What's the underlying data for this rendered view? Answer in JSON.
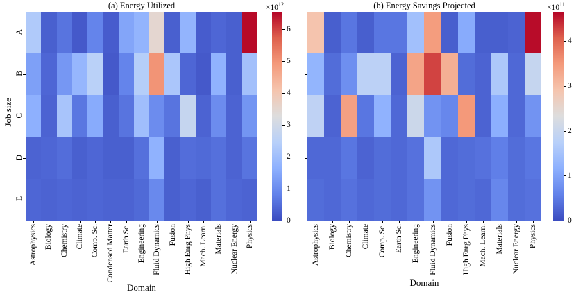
{
  "chart_data": [
    {
      "type": "heatmap",
      "title": "(a) Energy Utilized",
      "xlabel": "Domain",
      "ylabel": "Job size",
      "colormap": "coolwarm",
      "value_scale": "1e12",
      "x_categories": [
        "Astrophysics",
        "Biology",
        "Chemistry",
        "Climate",
        "Comp. Sc.",
        "Condensed Matter",
        "Earth Sc.",
        "Engineering",
        "Fluid Dynamics",
        "Fusion",
        "High Enrg Phys",
        "Mach. Learn.",
        "Materials",
        "Nuclear Energy",
        "Physics"
      ],
      "y_categories": [
        "A",
        "B",
        "C",
        "D",
        "E"
      ],
      "y_tick_labels_shown": true,
      "colorbar": {
        "prefix": "×10",
        "exponent": "12",
        "ticks": [
          0,
          1,
          2,
          3,
          4,
          5,
          6
        ],
        "vmin": 0,
        "vmax": 6.55
      },
      "values": [
        [
          2.3,
          0.3,
          0.6,
          0.2,
          0.85,
          0.25,
          1.45,
          1.75,
          3.5,
          0.3,
          1.75,
          0.25,
          0.4,
          0.3,
          6.5
        ],
        [
          1.35,
          0.4,
          1.2,
          1.8,
          2.5,
          0.2,
          0.85,
          2.4,
          5.0,
          2.2,
          0.4,
          0.2,
          1.7,
          0.3,
          2.05
        ],
        [
          1.65,
          0.35,
          2.15,
          0.65,
          1.55,
          0.3,
          0.6,
          2.0,
          1.0,
          0.6,
          2.75,
          0.35,
          1.0,
          0.35,
          1.15
        ],
        [
          0.35,
          0.4,
          0.5,
          0.3,
          0.4,
          0.3,
          0.3,
          0.55,
          1.7,
          0.3,
          0.5,
          0.45,
          0.55,
          0.35,
          0.6
        ],
        [
          0.4,
          0.35,
          0.4,
          0.35,
          0.4,
          0.35,
          0.35,
          0.45,
          0.95,
          0.3,
          0.4,
          0.3,
          0.55,
          0.4,
          0.35
        ]
      ]
    },
    {
      "type": "heatmap",
      "title": "(b) Energy Savings Projected",
      "xlabel": "Domain",
      "ylabel": "",
      "colormap": "coolwarm",
      "value_scale": "1e11",
      "x_categories": [
        "Astrophysics",
        "Biology",
        "Chemistry",
        "Climate",
        "Comp. Sc.",
        "Earth Sc.",
        "Engineering",
        "Fluid Dynamics",
        "Fusion",
        "High Enrg Phys",
        "Mach. Learn.",
        "Materials",
        "Nuclear Energy",
        "Physics"
      ],
      "y_categories": [
        "A",
        "B",
        "C",
        "D",
        "E"
      ],
      "y_tick_labels_shown": false,
      "colorbar": {
        "prefix": "×10",
        "exponent": "11",
        "ticks": [
          0,
          1,
          2,
          3,
          4
        ],
        "vmin": 0,
        "vmax": 4.65
      },
      "values": [
        [
          2.9,
          0.2,
          0.45,
          0.2,
          0.45,
          0.45,
          1.45,
          3.45,
          0.2,
          1.1,
          0.2,
          0.2,
          0.25,
          4.6
        ],
        [
          1.25,
          0.35,
          0.75,
          1.8,
          1.8,
          0.25,
          3.35,
          4.25,
          3.2,
          0.35,
          0.25,
          1.6,
          0.3,
          1.95
        ],
        [
          1.85,
          0.25,
          3.4,
          0.45,
          1.2,
          0.3,
          2.05,
          0.8,
          0.65,
          3.5,
          0.25,
          1.15,
          0.3,
          0.8
        ],
        [
          0.3,
          0.3,
          0.45,
          0.25,
          0.35,
          0.3,
          0.4,
          1.6,
          0.3,
          0.35,
          0.4,
          0.55,
          0.35,
          0.45
        ],
        [
          0.35,
          0.3,
          0.4,
          0.3,
          0.35,
          0.3,
          0.4,
          0.8,
          0.3,
          0.35,
          0.3,
          0.65,
          0.35,
          0.4
        ]
      ]
    }
  ]
}
